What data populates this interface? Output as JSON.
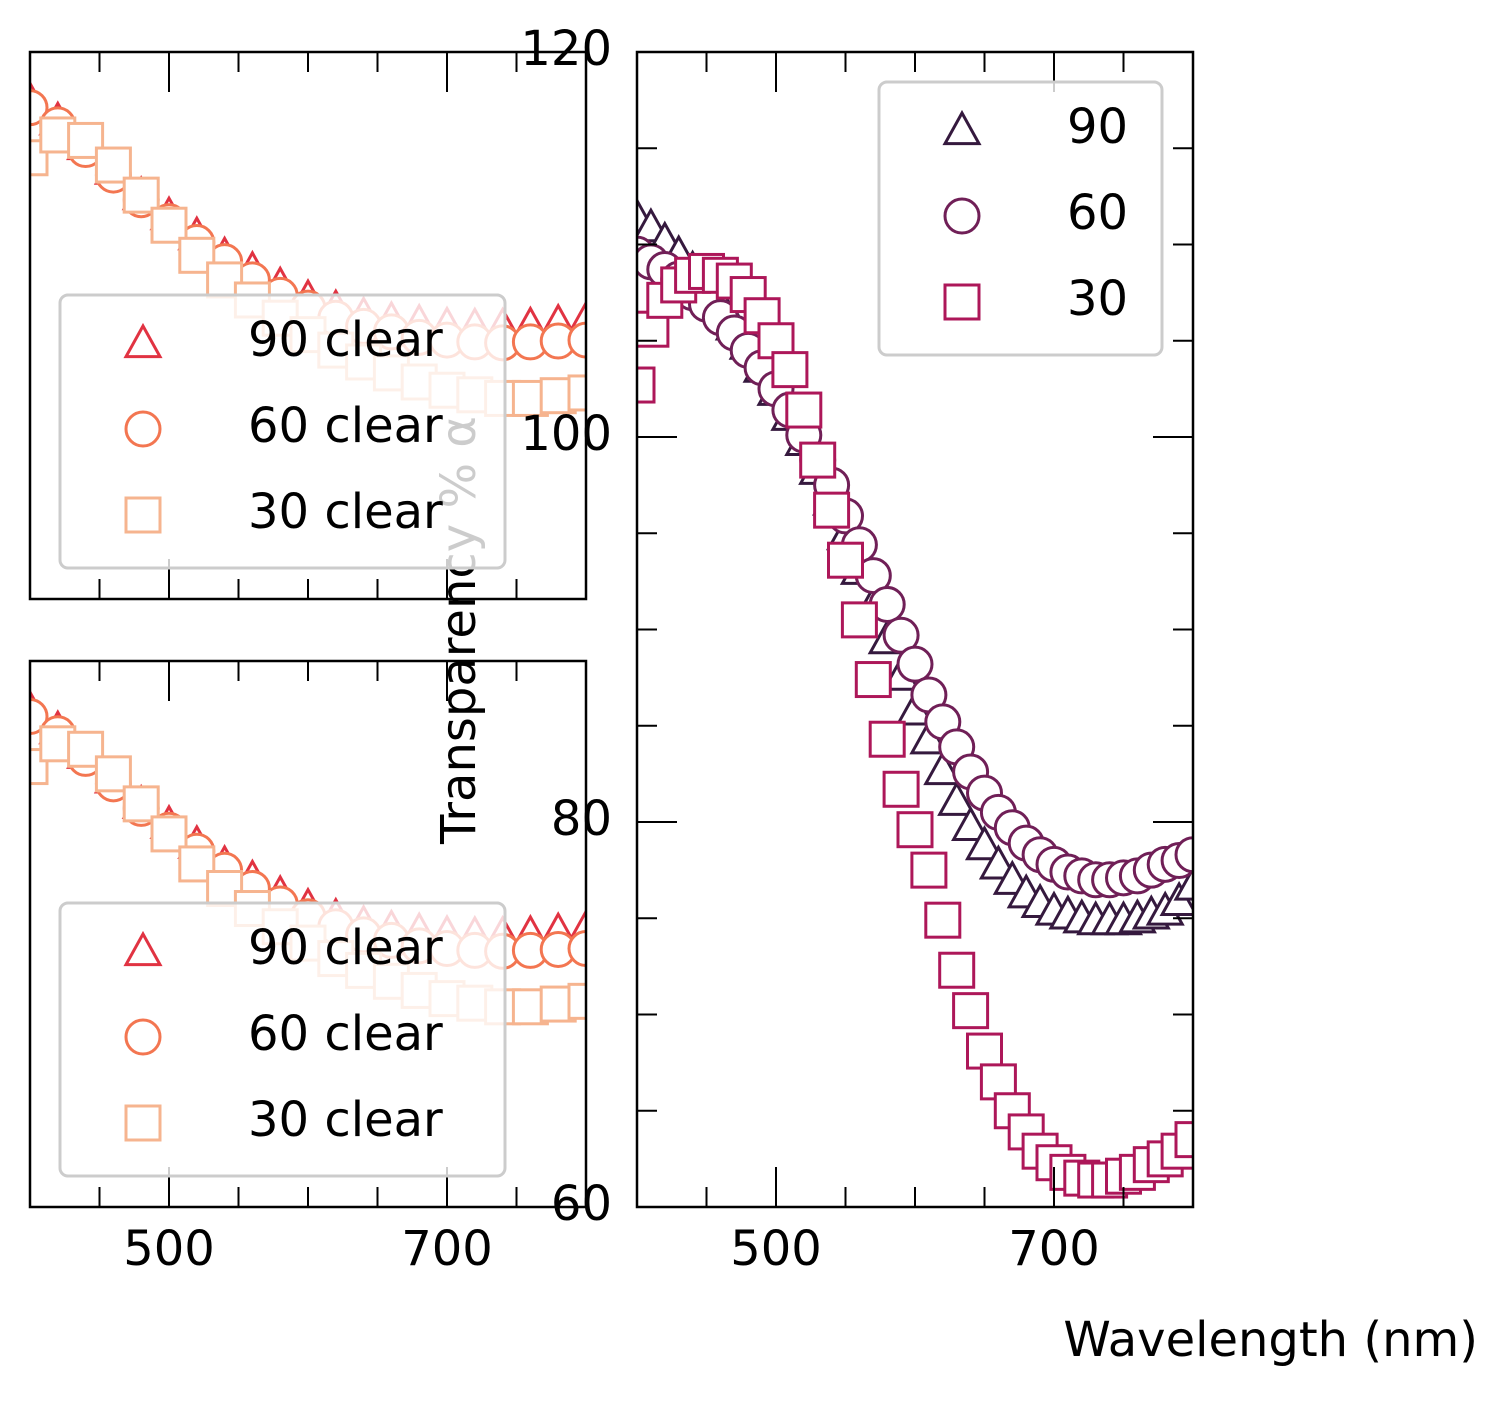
{
  "chart_data": [
    {
      "type": "scatter",
      "xlim": [
        400,
        800
      ],
      "ylim": [
        60,
        120
      ],
      "xticks": [
        500,
        700
      ],
      "xminorticks": [
        450,
        550,
        600,
        650,
        750
      ],
      "show_xtick_labels": false,
      "legend": "lower left",
      "x": [
        400,
        420,
        440,
        460,
        480,
        500,
        520,
        540,
        560,
        580,
        600,
        620,
        640,
        660,
        680,
        700,
        720,
        740,
        760,
        780,
        800
      ],
      "series": [
        {
          "name": "90 clear",
          "color": "#e13342",
          "marker": "^",
          "values": [
            114.7,
            112.5,
            109.8,
            107.1,
            104.3,
            102.1,
            99.9,
            97.7,
            96.1,
            94.4,
            93.0,
            91.9,
            91.1,
            90.6,
            90.3,
            90.0,
            89.9,
            89.9,
            90.0,
            90.3,
            90.6
          ]
        },
        {
          "name": "60 clear",
          "color": "#f37651",
          "marker": "o",
          "values": [
            113.9,
            112.0,
            109.3,
            106.5,
            103.8,
            101.4,
            99.1,
            97.0,
            95.0,
            93.3,
            91.9,
            90.8,
            89.9,
            89.3,
            88.7,
            88.4,
            88.2,
            88.1,
            88.2,
            88.3,
            88.4
          ]
        },
        {
          "name": "30 clear",
          "color": "#f6b48f",
          "marker": "s",
          "values": [
            108.4,
            110.9,
            110.3,
            107.6,
            104.3,
            101.0,
            97.7,
            95.0,
            92.8,
            90.8,
            89.0,
            87.3,
            86.0,
            84.8,
            83.8,
            82.9,
            82.4,
            82.0,
            82.0,
            82.3,
            82.6
          ]
        }
      ]
    },
    {
      "type": "scatter",
      "xlim": [
        400,
        800
      ],
      "ylim": [
        60,
        120
      ],
      "xticks": [
        500,
        700
      ],
      "xminorticks": [
        450,
        550,
        600,
        650,
        750
      ],
      "show_xtick_labels": true,
      "legend": "lower left",
      "x": [
        400,
        420,
        440,
        460,
        480,
        500,
        520,
        540,
        560,
        580,
        600,
        620,
        640,
        660,
        680,
        700,
        720,
        740,
        760,
        780,
        800
      ],
      "series": [
        {
          "name": "90 clear",
          "color": "#e13342",
          "marker": "^",
          "values": [
            114.7,
            112.5,
            109.8,
            107.1,
            104.3,
            102.1,
            99.9,
            97.7,
            96.1,
            94.4,
            93.0,
            91.9,
            91.1,
            90.6,
            90.3,
            90.0,
            89.9,
            89.9,
            90.0,
            90.3,
            90.6
          ]
        },
        {
          "name": "60 clear",
          "color": "#f37651",
          "marker": "o",
          "values": [
            113.9,
            112.0,
            109.3,
            106.5,
            103.8,
            101.4,
            99.1,
            97.0,
            95.0,
            93.3,
            91.9,
            90.8,
            89.9,
            89.3,
            88.7,
            88.4,
            88.2,
            88.1,
            88.2,
            88.3,
            88.4
          ]
        },
        {
          "name": "30 clear",
          "color": "#f6b48f",
          "marker": "s",
          "values": [
            108.4,
            110.9,
            110.3,
            107.6,
            104.3,
            101.0,
            97.7,
            95.0,
            92.8,
            90.8,
            89.0,
            87.3,
            86.0,
            84.8,
            83.8,
            82.9,
            82.4,
            82.0,
            82.0,
            82.3,
            82.6
          ]
        }
      ]
    },
    {
      "type": "scatter",
      "xlabel": "Wavelength (nm)",
      "ylabel": "Transparency % α",
      "xlim": [
        400,
        800
      ],
      "ylim": [
        60,
        120
      ],
      "xticks": [
        500,
        700
      ],
      "xminorticks": [
        450,
        550,
        600,
        650,
        750
      ],
      "yticks": [
        60,
        80,
        100,
        120
      ],
      "yminorticks": [
        65,
        70,
        75,
        85,
        90,
        95,
        105,
        110,
        115
      ],
      "show_xtick_labels": true,
      "legend": "upper right",
      "x": [
        400,
        410,
        420,
        430,
        440,
        450,
        460,
        470,
        480,
        490,
        500,
        510,
        520,
        530,
        540,
        550,
        560,
        570,
        580,
        590,
        600,
        610,
        620,
        630,
        640,
        650,
        660,
        670,
        680,
        690,
        700,
        710,
        720,
        730,
        740,
        750,
        760,
        770,
        780,
        790,
        800
      ],
      "series": [
        {
          "name": "90",
          "color": "#35193e",
          "marker": "^",
          "values": [
            111.4,
            110.9,
            110.2,
            109.5,
            108.7,
            107.8,
            106.9,
            105.8,
            104.8,
            103.6,
            102.4,
            101.1,
            99.8,
            98.3,
            96.7,
            94.9,
            93.1,
            91.3,
            89.5,
            87.6,
            85.8,
            84.3,
            82.7,
            81.1,
            79.8,
            78.8,
            77.8,
            77.0,
            76.3,
            75.8,
            75.4,
            75.2,
            75.0,
            74.9,
            74.9,
            74.9,
            75.0,
            75.2,
            75.4,
            75.9,
            76.7
          ]
        },
        {
          "name": "60",
          "color": "#701f57",
          "marker": "o",
          "values": [
            109.5,
            109.1,
            108.7,
            108.2,
            107.5,
            106.9,
            106.2,
            105.4,
            104.5,
            103.6,
            102.5,
            101.4,
            100.1,
            98.8,
            97.5,
            95.9,
            94.4,
            92.8,
            91.3,
            89.7,
            88.2,
            86.6,
            85.2,
            83.9,
            82.6,
            81.5,
            80.5,
            79.7,
            78.9,
            78.3,
            77.8,
            77.4,
            77.2,
            77.0,
            77.0,
            77.1,
            77.2,
            77.5,
            77.8,
            78.0,
            78.3
          ]
        },
        {
          "name": "30",
          "color": "#ad1759",
          "marker": "s",
          "values": [
            102.7,
            105.6,
            107.1,
            107.9,
            108.4,
            108.6,
            108.4,
            108.1,
            107.4,
            106.3,
            105.0,
            103.5,
            101.4,
            98.8,
            96.2,
            93.6,
            90.5,
            87.4,
            84.3,
            81.7,
            79.6,
            77.5,
            74.9,
            72.3,
            70.2,
            68.1,
            66.5,
            65.0,
            63.9,
            62.9,
            62.3,
            61.8,
            61.5,
            61.4,
            61.4,
            61.6,
            61.8,
            62.2,
            62.5,
            62.9,
            63.5
          ]
        }
      ]
    }
  ]
}
